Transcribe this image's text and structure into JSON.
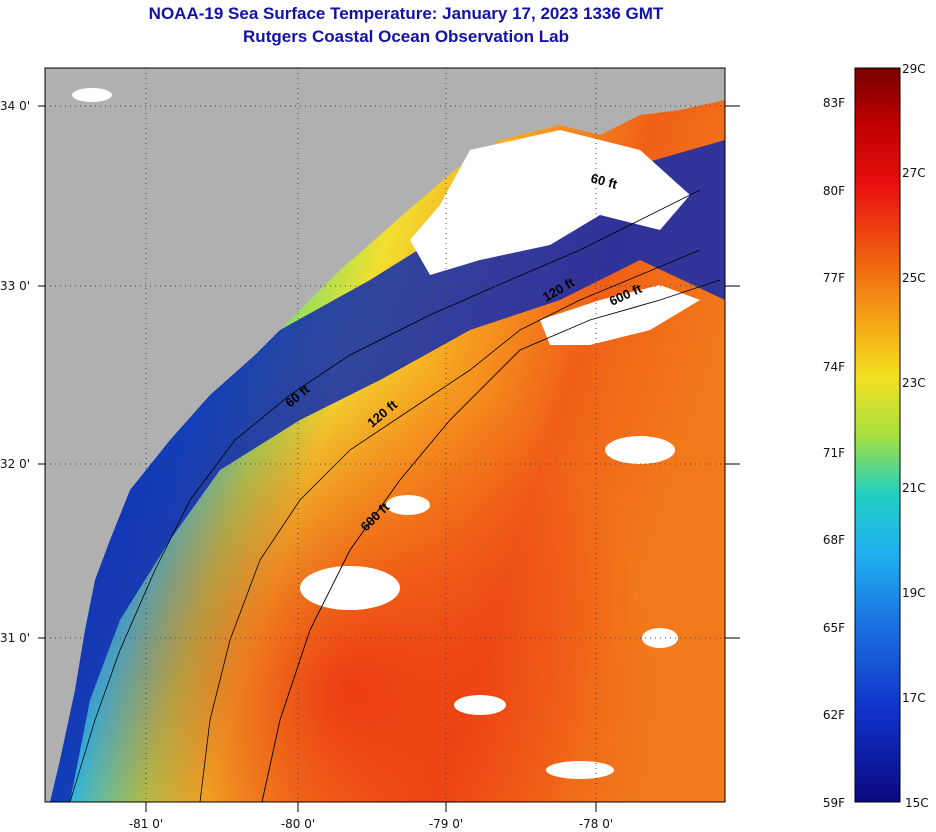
{
  "title": "NOAA-19 Sea Surface Temperature:  January 17, 2023 1336 GMT",
  "subtitle": "Rutgers Coastal Ocean Observation Lab",
  "map": {
    "lat_labels": [
      "34 0'",
      "33 0'",
      "32 0'",
      "31 0'"
    ],
    "lon_labels": [
      "-81 0'",
      "-80 0'",
      "-79 0'",
      "-78 0'"
    ],
    "contour_labels": [
      "60 ft",
      "120 ft",
      "600 ft",
      "60 ft",
      "120 ft",
      "600 ft"
    ],
    "colors": {
      "land": "#b0b0b0",
      "cloud": "#ffffff",
      "cold": "#0a1a9a",
      "warm": "#f04a10"
    }
  },
  "colorbar": {
    "fahrenheit_labels": [
      "83F",
      "80F",
      "77F",
      "74F",
      "71F",
      "68F",
      "65F",
      "62F",
      "59F"
    ],
    "celsius_labels": [
      "29C",
      "27C",
      "25C",
      "23C",
      "21C",
      "19C",
      "17C",
      "15C"
    ],
    "range_c": [
      15,
      29
    ]
  }
}
